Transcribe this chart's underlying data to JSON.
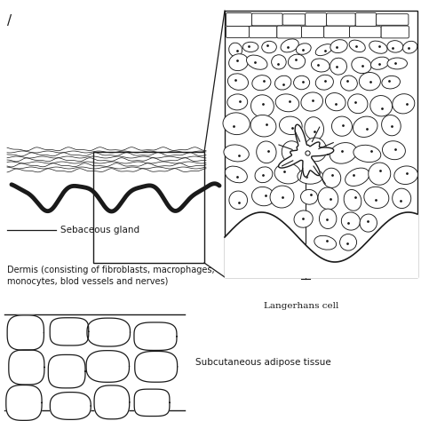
{
  "bg_color": "#ffffff",
  "line_color": "#1a1a1a",
  "labels": {
    "sebaceous_gland": "Sebaceous gland",
    "dermis": "Dermis (consisting of fibroblasts, macrophages,\nmonocytes, blod vessels and nerves)",
    "langerhans": "Langerhans cell",
    "subcutaneous": "Subcutaneous adipose tissue"
  },
  "font_size": 7.5
}
